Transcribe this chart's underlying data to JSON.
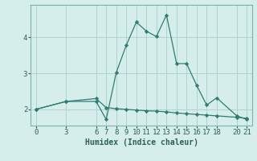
{
  "xlabel": "Humidex (Indice chaleur)",
  "bg_color": "#d5eeeb",
  "line_color": "#2e7d72",
  "grid_color": "#aed4cf",
  "line1_x": [
    0,
    3,
    6,
    7,
    8,
    9,
    10,
    11,
    12,
    13,
    14,
    15,
    16,
    17,
    18,
    20,
    21
  ],
  "line1_y": [
    2.0,
    2.22,
    2.22,
    1.72,
    3.02,
    3.78,
    4.42,
    4.17,
    4.02,
    4.62,
    3.27,
    3.27,
    2.67,
    2.12,
    2.32,
    1.82,
    1.72
  ],
  "line2_x": [
    0,
    3,
    6,
    7,
    8,
    9,
    10,
    11,
    12,
    13,
    14,
    15,
    16,
    17,
    18,
    20,
    21
  ],
  "line2_y": [
    2.0,
    2.22,
    2.3,
    2.05,
    2.02,
    2.0,
    1.98,
    1.96,
    1.95,
    1.93,
    1.9,
    1.88,
    1.86,
    1.84,
    1.82,
    1.78,
    1.75
  ],
  "xlim": [
    -0.5,
    21.5
  ],
  "ylim": [
    1.55,
    4.9
  ],
  "yticks": [
    2,
    3,
    4
  ],
  "xticks": [
    0,
    3,
    6,
    7,
    8,
    9,
    10,
    11,
    12,
    13,
    14,
    15,
    16,
    17,
    18,
    20,
    21
  ],
  "label_fontsize": 7,
  "tick_fontsize": 6.5
}
